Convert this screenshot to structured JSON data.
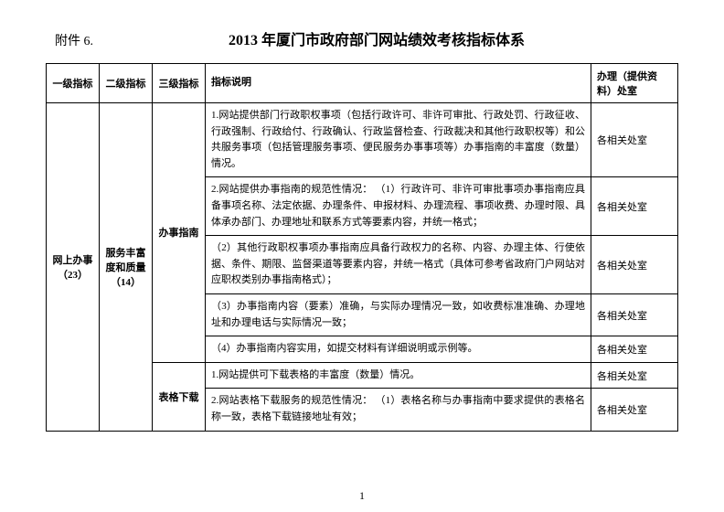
{
  "appendix": "附件 6.",
  "title": "2013 年厦门市政府部门网站绩效考核指标体系",
  "header": {
    "l1": "一级指标",
    "l2": "二级指标",
    "l3": "三级指标",
    "desc": "指标说明",
    "dept": "办理（提供资料）处室"
  },
  "l1_label": "网上办事（23）",
  "l2_label": "服务丰富度和质量（14）",
  "l3_label_1": "办事指南",
  "l3_label_2": "表格下载",
  "rows": [
    {
      "desc": "1.网站提供部门行政职权事项（包括行政许可、非许可审批、行政处罚、行政征收、行政强制、行政给付、行政确认、行政监督检查、行政裁决和其他行政职权等）和公共服务事项（包括管理服务事项、便民服务办事事项等）办事指南的丰富度（数量）情况。",
      "dept": "各相关处室"
    },
    {
      "desc": "2.网站提供办事指南的规范性情况：\n（1）行政许可、非许可审批事项办事指南应具备事项名称、法定依据、办理条件、申报材料、办理流程、事项收费、办理时限、具体承办部门、办理地址和联系方式等要素内容，并统一格式；",
      "dept": "各相关处室"
    },
    {
      "desc": "（2）其他行政职权事项办事指南应具备行政权力的名称、内容、办理主体、行使依据、条件、期限、监督渠道等要素内容，并统一格式（具体可参考省政府门户网站对应职权类别办事指南格式）；",
      "dept": "各相关处室"
    },
    {
      "desc": "（3）办事指南内容（要素）准确，与实际办理情况一致，如收费标准准确、办理地址和办理电话与实际情况一致；",
      "dept": "各相关处室"
    },
    {
      "desc": "（4）办事指南内容实用，如提交材料有详细说明或示例等。",
      "dept": "各相关处室"
    },
    {
      "desc": "1.网站提供可下载表格的丰富度（数量）情况。",
      "dept": "各相关处室"
    },
    {
      "desc": "2.网站表格下载服务的规范性情况：\n（1）表格名称与办事指南中要求提供的表格名称一致，表格下载链接地址有效；",
      "dept": "各相关处室"
    }
  ],
  "pageNum": "1"
}
